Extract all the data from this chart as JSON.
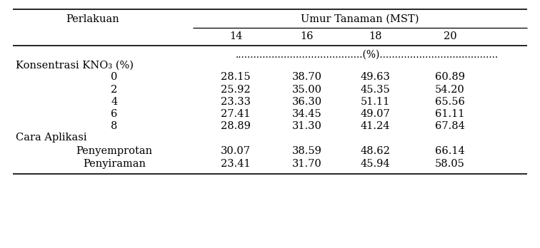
{
  "col_header_main": "Umur Tanaman (MST)",
  "col_header_sub": [
    "14",
    "16",
    "18",
    "20"
  ],
  "col_perlakuan": "Perlakuan",
  "unit_row": "..........................................(%).......................................",
  "section1_label": "Konsentrasi KNO₃ (%)",
  "section1_rows": [
    [
      "0",
      "28.15",
      "38.70",
      "49.63",
      "60.89"
    ],
    [
      "2",
      "25.92",
      "35.00",
      "45.35",
      "54.20"
    ],
    [
      "4",
      "23.33",
      "36.30",
      "51.11",
      "65.56"
    ],
    [
      "6",
      "27.41",
      "34.45",
      "49.07",
      "61.11"
    ],
    [
      "8",
      "28.89",
      "31.30",
      "41.24",
      "67.84"
    ]
  ],
  "section2_label": "Cara Aplikasi",
  "section2_rows": [
    [
      "Penyemprotan",
      "30.07",
      "38.59",
      "48.62",
      "66.14"
    ],
    [
      "Penyiraman",
      "23.41",
      "31.70",
      "45.94",
      "58.05"
    ]
  ],
  "font_family": "serif",
  "font_size": 10.5,
  "bg_color": "#ffffff",
  "text_color": "#000000",
  "fig_width": 7.56,
  "fig_height": 3.48,
  "dpi": 100
}
